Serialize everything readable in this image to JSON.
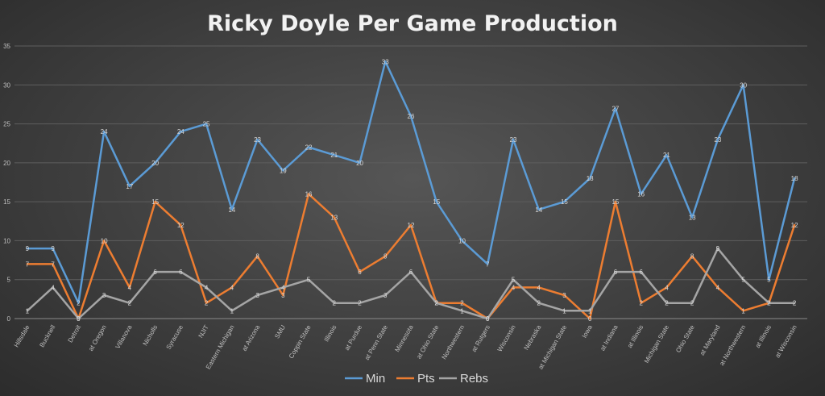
{
  "chart_data": {
    "type": "line",
    "title": "Ricky Doyle Per Game Production",
    "xlabel": "",
    "ylabel": "",
    "ylim": [
      0,
      35
    ],
    "yticks": [
      0,
      5,
      10,
      15,
      20,
      25,
      30,
      35
    ],
    "grid": true,
    "legend_position": "bottom",
    "categories": [
      "Hillsdale",
      "Bucknell",
      "Detroit",
      "at Oregon",
      "Villanova",
      "Nicholls",
      "Syracuse",
      "NJIT",
      "Eastern Michigan",
      "at Arizona",
      "SMU",
      "Coppin State",
      "Illinois",
      "at Purdue",
      "at Penn State",
      "Minnesota",
      "at Ohio State",
      "Northwestern",
      "at Rutgers",
      "Wisconsin",
      "Nebraska",
      "at Michigan State",
      "Iowa",
      "at Indiana",
      "at Illinois",
      "Michigan State",
      "Ohio State",
      "at Maryland",
      "at Northwestern",
      "at Illinois",
      "at Wisconsin"
    ],
    "series": [
      {
        "name": "Min",
        "color": "#5b9bd5",
        "values": [
          9,
          9,
          2,
          24,
          17,
          20,
          24,
          25,
          14,
          23,
          19,
          22,
          21,
          20,
          33,
          26,
          15,
          10,
          7,
          23,
          14,
          15,
          18,
          27,
          16,
          21,
          13,
          23,
          30,
          5,
          18
        ]
      },
      {
        "name": "Pts",
        "color": "#ed7d31",
        "values": [
          7,
          7,
          0,
          10,
          4,
          15,
          12,
          2,
          4,
          8,
          3,
          16,
          13,
          6,
          8,
          12,
          2,
          2,
          0,
          4,
          4,
          3,
          0,
          15,
          2,
          4,
          8,
          4,
          1,
          2,
          12
        ]
      },
      {
        "name": "Rebs",
        "color": "#a5a5a5",
        "values": [
          1,
          4,
          0,
          3,
          2,
          6,
          6,
          4,
          1,
          3,
          4,
          5,
          2,
          2,
          3,
          6,
          2,
          1,
          0,
          5,
          2,
          1,
          1,
          6,
          6,
          2,
          2,
          9,
          5,
          2,
          2
        ]
      }
    ]
  }
}
